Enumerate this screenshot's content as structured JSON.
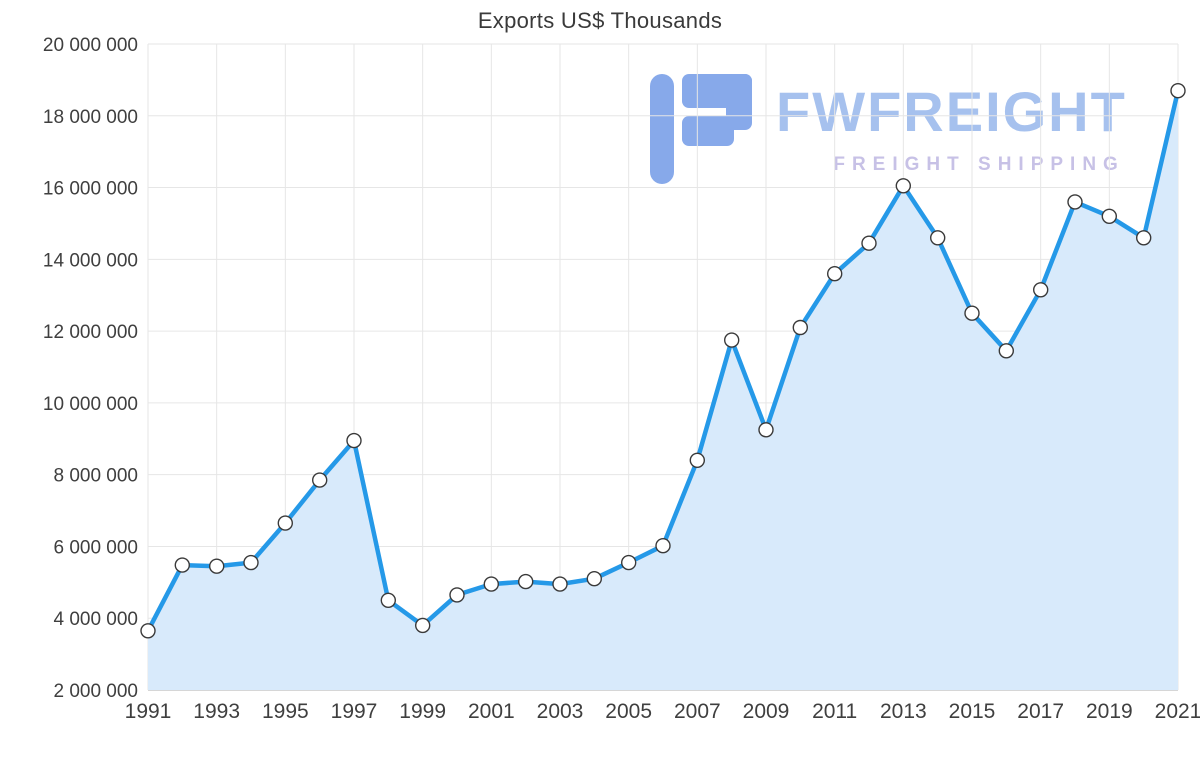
{
  "title": "Exports US$ Thousands",
  "watermark": {
    "brand": "FWFREIGHT",
    "tagline": "FREIGHT SHIPPING",
    "brand_color": "#a6c1ee",
    "tagline_color": "#c7c1e6",
    "logo_color": "#6d97e6"
  },
  "chart_data": {
    "type": "area",
    "title": "Exports US$ Thousands",
    "xlabel": "",
    "ylabel": "",
    "ylim": [
      2000000,
      20000000
    ],
    "grid": true,
    "legend": "none",
    "line_color": "#2599e8",
    "area_color": "#d8eafb",
    "marker_fill": "#ffffff",
    "marker_stroke": "#3a3a3a",
    "grid_color": "#e6e6e6",
    "axis_color": "#c8c8c8",
    "x": [
      1991,
      1992,
      1993,
      1994,
      1995,
      1996,
      1997,
      1998,
      1999,
      2000,
      2001,
      2002,
      2003,
      2004,
      2005,
      2006,
      2007,
      2008,
      2009,
      2010,
      2011,
      2012,
      2013,
      2014,
      2015,
      2016,
      2017,
      2018,
      2019,
      2020,
      2021
    ],
    "series": [
      {
        "name": "Exports US$ Thousands",
        "values": [
          3650000,
          5480000,
          5450000,
          5550000,
          6650000,
          7850000,
          8950000,
          4500000,
          3800000,
          4650000,
          4950000,
          5020000,
          4950000,
          5100000,
          5550000,
          6020000,
          8400000,
          11750000,
          9250000,
          12100000,
          13600000,
          14450000,
          16050000,
          14600000,
          12500000,
          11450000,
          13150000,
          15600000,
          15200000,
          14600000,
          18700000
        ]
      }
    ],
    "y_ticks": [
      {
        "value": 20000000,
        "label": "20 000 000"
      },
      {
        "value": 18000000,
        "label": "18 000 000"
      },
      {
        "value": 16000000,
        "label": "16 000 000"
      },
      {
        "value": 14000000,
        "label": "14 000 000"
      },
      {
        "value": 12000000,
        "label": "12 000 000"
      },
      {
        "value": 10000000,
        "label": "10 000 000"
      },
      {
        "value": 8000000,
        "label": "8 000 000"
      },
      {
        "value": 6000000,
        "label": "6 000 000"
      },
      {
        "value": 4000000,
        "label": "4 000 000"
      },
      {
        "value": 2000000,
        "label": "2 000 000"
      }
    ],
    "x_ticks": [
      {
        "value": 1991,
        "label": "1991"
      },
      {
        "value": 1993,
        "label": "1993"
      },
      {
        "value": 1995,
        "label": "1995"
      },
      {
        "value": 1997,
        "label": "1997"
      },
      {
        "value": 1999,
        "label": "1999"
      },
      {
        "value": 2001,
        "label": "2001"
      },
      {
        "value": 2003,
        "label": "2003"
      },
      {
        "value": 2005,
        "label": "2005"
      },
      {
        "value": 2007,
        "label": "2007"
      },
      {
        "value": 2009,
        "label": "2009"
      },
      {
        "value": 2011,
        "label": "2011"
      },
      {
        "value": 2013,
        "label": "2013"
      },
      {
        "value": 2015,
        "label": "2015"
      },
      {
        "value": 2017,
        "label": "2017"
      },
      {
        "value": 2019,
        "label": "2019"
      },
      {
        "value": 2021,
        "label": "2021"
      }
    ]
  }
}
